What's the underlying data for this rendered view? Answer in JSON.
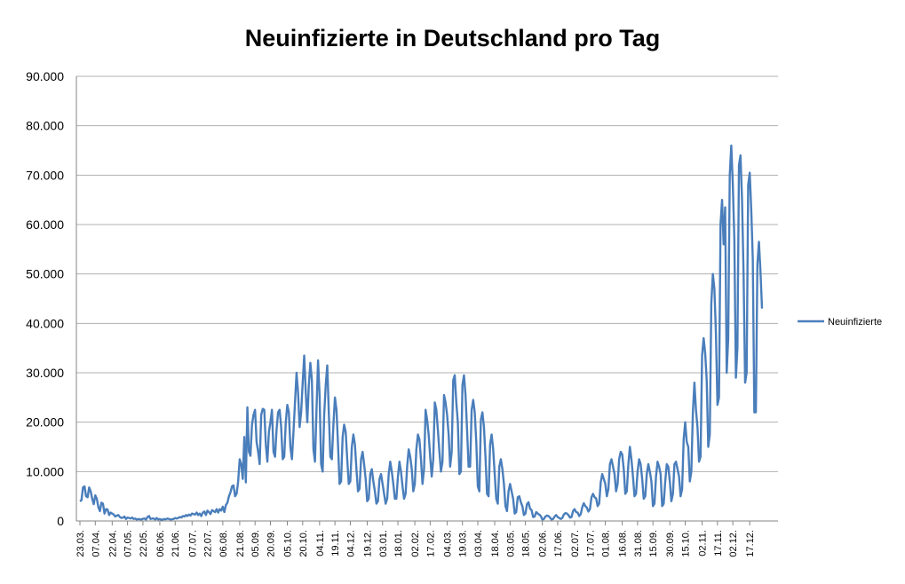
{
  "chart_data": {
    "type": "line",
    "title": "Neuinfizierte in Deutschland pro Tag",
    "xlabel": "",
    "ylabel": "",
    "ylim": [
      0,
      90000
    ],
    "y_ticks": [
      "0",
      "10.000",
      "20.000",
      "30.000",
      "40.000",
      "50.000",
      "60.000",
      "70.000",
      "80.000",
      "90.000"
    ],
    "x_tick_labels": [
      "23.03.",
      "07.04.",
      "22.04.",
      "07.05.",
      "22.05.",
      "06.06.",
      "21.06.",
      "07.07.",
      "22.07.",
      "06.08.",
      "21.08.",
      "05.09.",
      "20.09.",
      "05.10.",
      "20.10.",
      "04.11.",
      "19.11.",
      "04.12.",
      "19.12.",
      "03.01.",
      "18.01.",
      "02.02.",
      "17.02.",
      "04.03.",
      "19.03.",
      "03.04.",
      "18.04.",
      "03.05.",
      "18.05.",
      "02.06.",
      "17.06.",
      "02.07.",
      "17.07.",
      "01.08.",
      "16.08.",
      "31.08.",
      "15.09.",
      "30.09.",
      "15.10.",
      "02.11.",
      "17.11.",
      "02.12.",
      "17.12."
    ],
    "grid": true,
    "legend_position": "right",
    "series": [
      {
        "name": "Neuinfizierte",
        "color": "#4a7ebb",
        "x_first": "23.03.",
        "values": [
          4000,
          4200,
          6800,
          7000,
          5000,
          4800,
          6800,
          6000,
          4500,
          3400,
          5200,
          4500,
          2800,
          2000,
          3700,
          3500,
          1500,
          2400,
          2300,
          1200,
          1700,
          1500,
          1300,
          900,
          1100,
          1200,
          800,
          600,
          700,
          900,
          400,
          700,
          600,
          500,
          700,
          400,
          500,
          300,
          400,
          350,
          300,
          450,
          500,
          300,
          800,
          1000,
          400,
          500,
          500,
          300,
          600,
          300,
          400,
          250,
          300,
          400,
          350,
          500,
          400,
          300,
          350,
          400,
          600,
          500,
          600,
          800,
          700,
          1000,
          900,
          1200,
          1000,
          1300,
          1100,
          1500,
          1400,
          1300,
          1700,
          1200,
          1500,
          1000,
          1700,
          1900,
          1200,
          2100,
          1800,
          1400,
          2200,
          2000,
          1800,
          2400,
          1700,
          2400,
          2100,
          2900,
          1800,
          3200,
          3700,
          5000,
          5800,
          7000,
          7200,
          5000,
          5500,
          8000,
          12500,
          11500,
          8500,
          17000,
          7800,
          23000,
          14000,
          13200,
          19500,
          21500,
          22500,
          16000,
          14000,
          11500,
          21500,
          22700,
          22500,
          15500,
          12000,
          18000,
          20000,
          22500,
          14000,
          13000,
          18500,
          22000,
          22500,
          19000,
          12500,
          13000,
          20000,
          23500,
          22000,
          15000,
          12500,
          18000,
          24000,
          30000,
          26000,
          19000,
          22000,
          28000,
          33500,
          26000,
          20000,
          27500,
          32000,
          28500,
          14500,
          12000,
          22500,
          32500,
          25500,
          11500,
          10000,
          21500,
          27500,
          31500,
          22000,
          13000,
          12500,
          19500,
          25000,
          22500,
          15500,
          7500,
          8000,
          17000,
          19500,
          18000,
          12500,
          7500,
          8000,
          15000,
          17500,
          15500,
          10500,
          6000,
          6500,
          12500,
          14000,
          11500,
          8500,
          4000,
          4500,
          9500,
          10500,
          8000,
          6000,
          3500,
          4000,
          8500,
          9500,
          7500,
          5500,
          3500,
          4500,
          9500,
          12000,
          10000,
          7500,
          4500,
          4500,
          9000,
          12000,
          10000,
          7000,
          4500,
          5500,
          11000,
          14500,
          13000,
          10500,
          6000,
          7500,
          14500,
          17500,
          16500,
          12500,
          7500,
          10500,
          22500,
          20500,
          17500,
          13000,
          9000,
          12500,
          24000,
          22500,
          18500,
          14000,
          10000,
          12000,
          25500,
          24000,
          21500,
          17500,
          11000,
          14000,
          28500,
          29500,
          24000,
          20000,
          9500,
          10000,
          27500,
          29500,
          25500,
          18500,
          11000,
          11000,
          22500,
          24500,
          22000,
          16000,
          7000,
          6000,
          20500,
          22000,
          19000,
          13000,
          5500,
          5000,
          15500,
          17500,
          14500,
          9500,
          4500,
          3500,
          11000,
          12500,
          10500,
          7500,
          3000,
          2000,
          6000,
          7500,
          6000,
          4500,
          1500,
          1800,
          4800,
          5000,
          3800,
          3000,
          1200,
          1500,
          3400,
          3800,
          2500,
          2200,
          800,
          900,
          1800,
          1500,
          1300,
          1000,
          300,
          400,
          900,
          1100,
          1000,
          700,
          300,
          400,
          900,
          1200,
          800,
          600,
          400,
          600,
          1300,
          1600,
          1500,
          1200,
          700,
          800,
          2000,
          2400,
          1800,
          1700,
          1000,
          1400,
          2800,
          3600,
          3000,
          2700,
          1900,
          2400,
          4800,
          5500,
          4800,
          4600,
          3000,
          3500,
          7800,
          9500,
          8500,
          7500,
          5000,
          6500,
          11500,
          12500,
          11000,
          9500,
          6000,
          7500,
          12500,
          14000,
          13500,
          10500,
          5500,
          6000,
          11500,
          15000,
          12500,
          9000,
          5000,
          5500,
          10000,
          12500,
          11500,
          8500,
          4500,
          5000,
          9500,
          11500,
          10000,
          8000,
          3000,
          3500,
          9000,
          12000,
          11000,
          9500,
          3000,
          3500,
          8000,
          11500,
          11000,
          8000,
          4000,
          5500,
          11500,
          12000,
          10500,
          9000,
          5000,
          6500,
          16500,
          20000,
          16000,
          15000,
          8000,
          10000,
          22000,
          28000,
          22500,
          19000,
          12000,
          13000,
          33500,
          37000,
          34000,
          28500,
          15000,
          17500,
          44000,
          50000,
          47000,
          38000,
          23500,
          25000,
          60000,
          65000,
          56000,
          63500,
          30000,
          37000,
          70000,
          76000,
          68000,
          57000,
          29000,
          35000,
          72000,
          74000,
          65000,
          50000,
          28000,
          30000,
          68000,
          70500,
          63000,
          53000,
          22000,
          22000,
          52000,
          56500,
          50500,
          43000
        ]
      }
    ]
  }
}
